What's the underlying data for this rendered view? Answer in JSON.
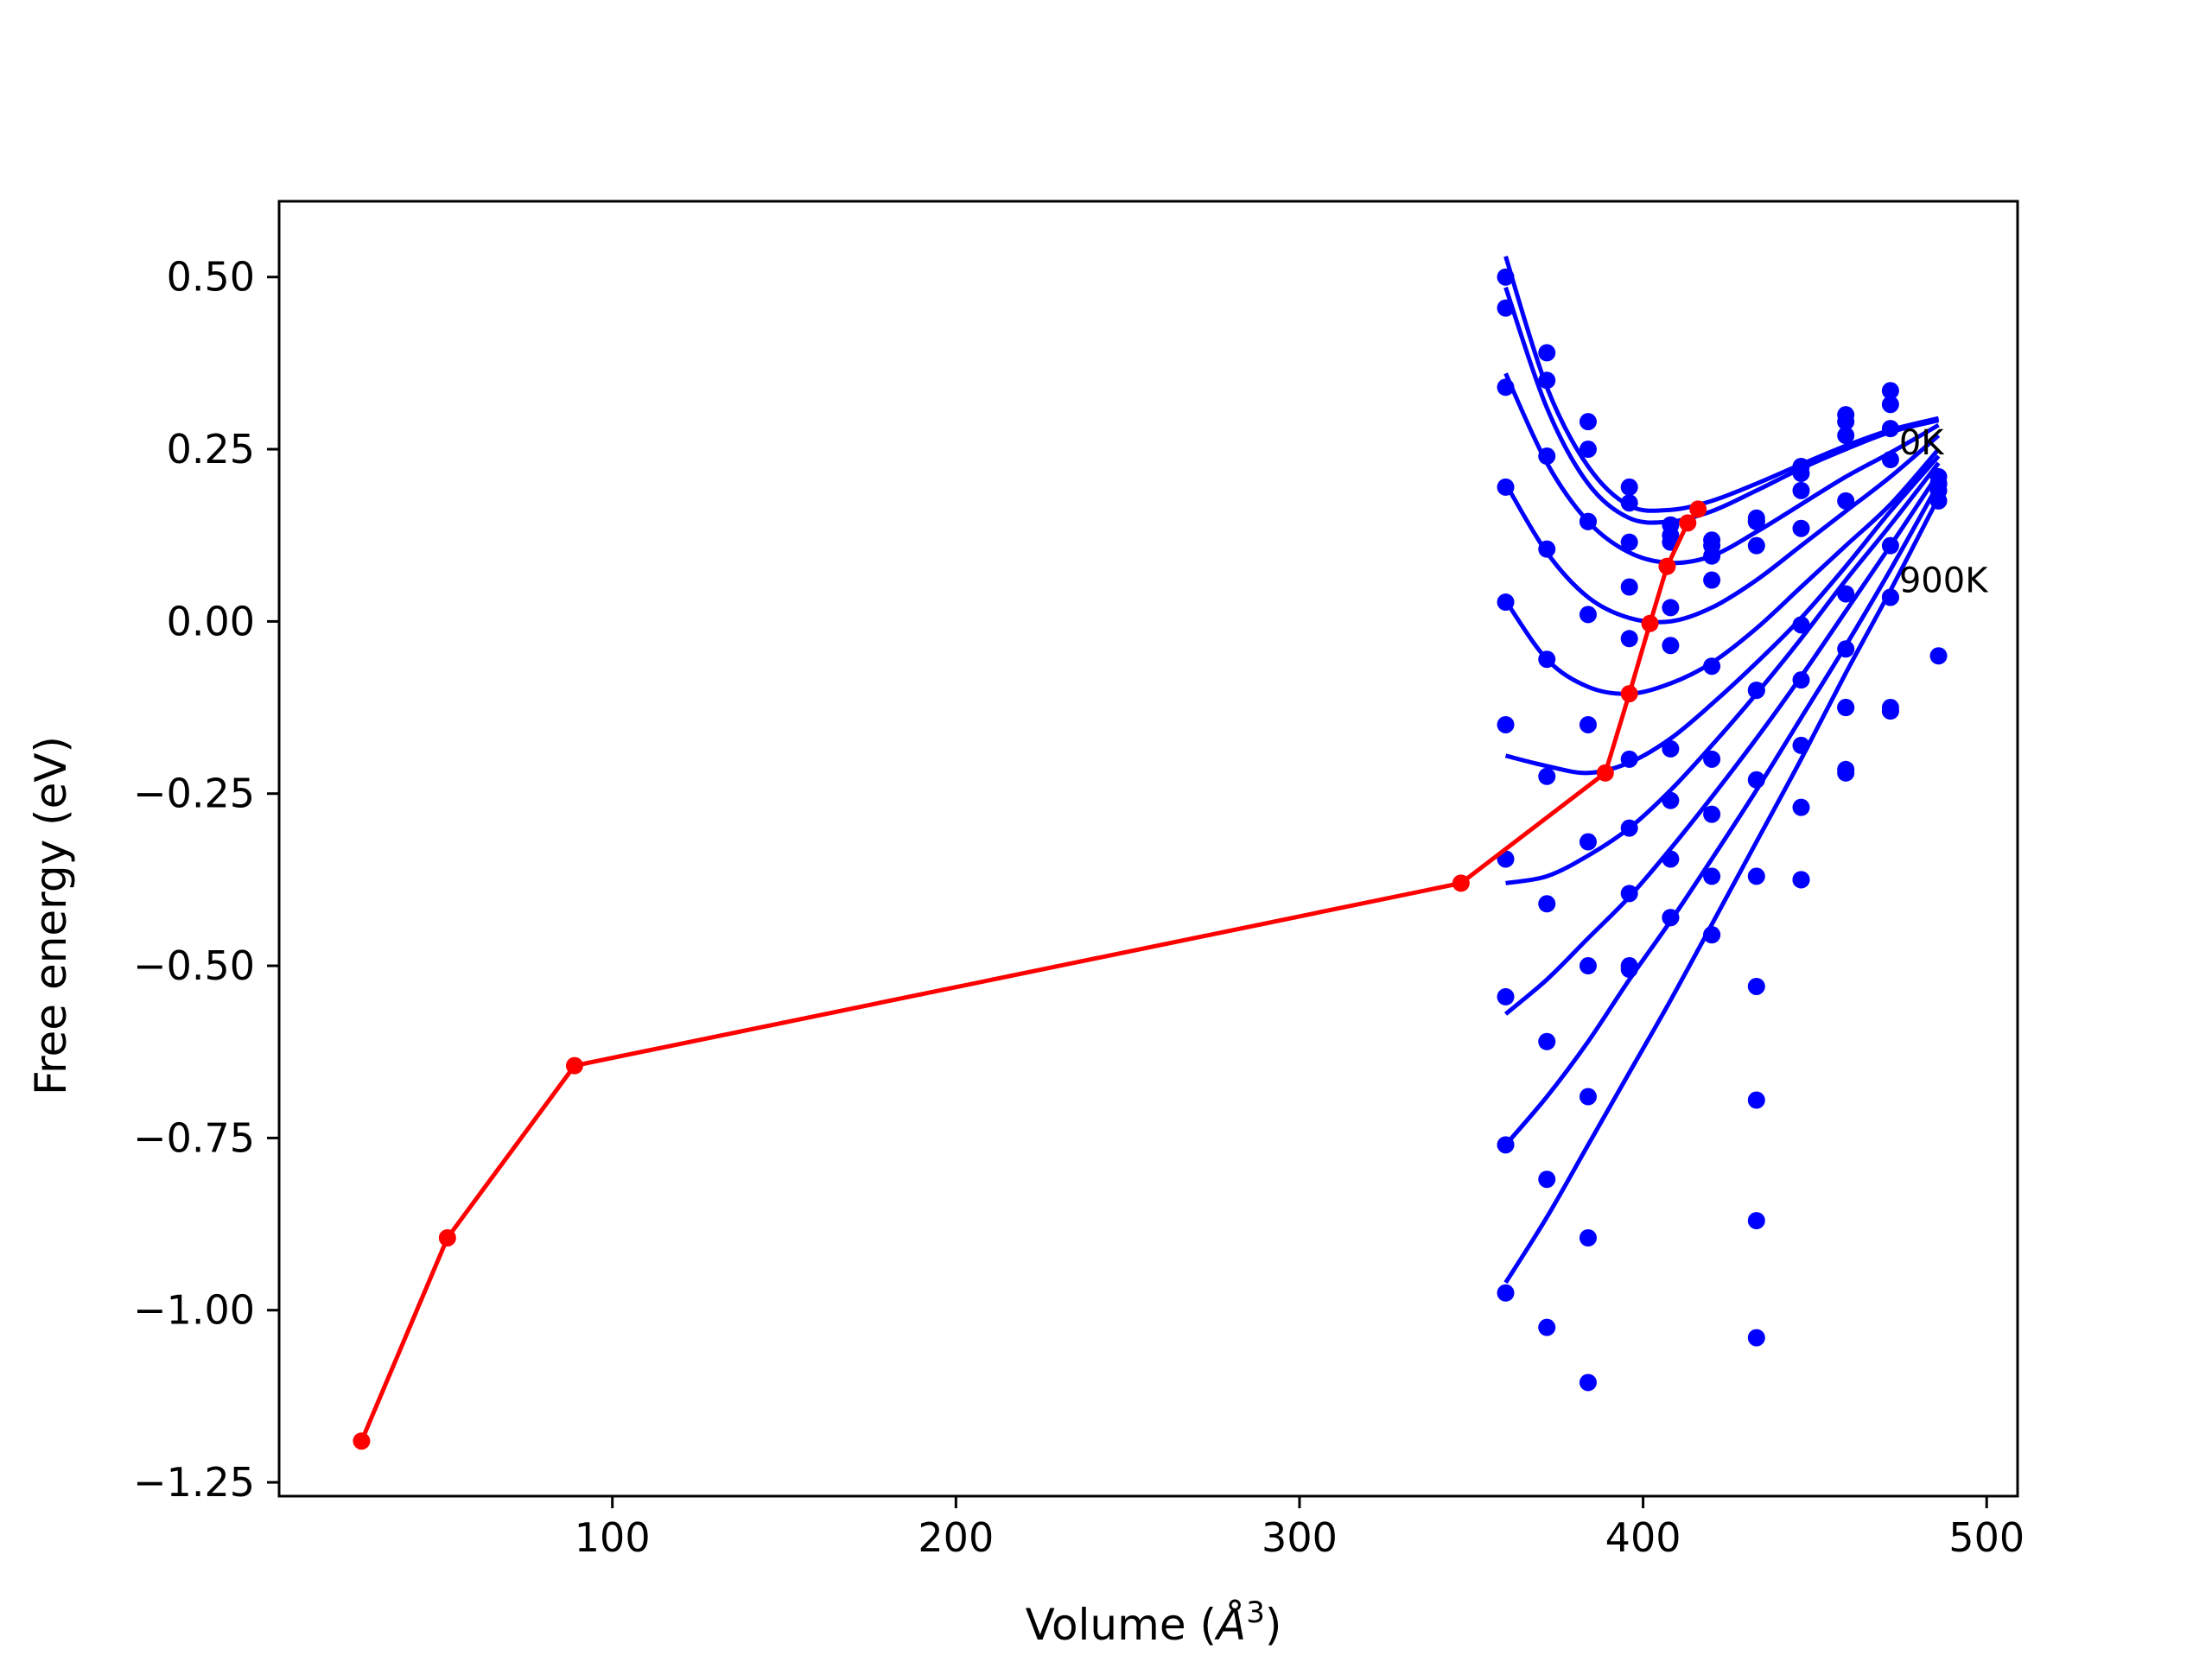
{
  "chart_data": {
    "type": "line",
    "title": "",
    "xlabel": "Volume (",
    "xlabel_unit": "Å",
    "xlabel_sup": "3",
    "xlabel_close": ")",
    "ylabel": "Free energy (eV)",
    "xlim": [
      3,
      509
    ],
    "ylim": [
      -1.27,
      0.61
    ],
    "xticks": [
      100,
      200,
      300,
      400,
      500
    ],
    "xtick_labels": [
      "100",
      "200",
      "300",
      "400",
      "500"
    ],
    "yticks": [
      0.5,
      0.25,
      0.0,
      -0.25,
      -0.5,
      -0.75,
      -1.0,
      -1.25
    ],
    "ytick_labels": [
      "0.50",
      "0.25",
      "0.00",
      "−0.25",
      "−0.50",
      "−0.75",
      "−1.00",
      "−1.25"
    ],
    "grid": false,
    "colors": {
      "curves": "#0000ff",
      "minimum_path": "#ff0000",
      "axes": "#000000"
    },
    "annotations": [
      {
        "text": "0K",
        "x": 473,
        "y": 0.26
      },
      {
        "text": "900K",
        "x": 473,
        "y": 0.06
      }
    ],
    "minimum_path": {
      "x": [
        27,
        52,
        89,
        347,
        389,
        396,
        402,
        407,
        413,
        416
      ],
      "y": [
        -1.19,
        -0.895,
        -0.645,
        -0.38,
        -0.22,
        -0.105,
        -0.003,
        0.08,
        0.143,
        0.163
      ]
    },
    "sample_volumes": [
      360,
      372,
      384,
      396,
      408,
      420,
      433,
      446,
      459,
      472,
      486
    ],
    "isotherms": [
      {
        "fit": [
          0.53,
          0.34,
          0.225,
          0.168,
          0.162,
          0.175,
          0.2,
          0.228,
          0.255,
          0.278,
          0.295
        ],
        "points": [
          0.5,
          0.39,
          0.29,
          0.195,
          0.14,
          0.118,
          0.145,
          0.225,
          0.3,
          0.335,
          0.2
        ]
      },
      {
        "fit": [
          0.485,
          0.31,
          0.2,
          0.15,
          0.145,
          0.16,
          0.19,
          0.222,
          0.25,
          0.275,
          0.292
        ],
        "points": [
          0.455,
          0.35,
          0.25,
          0.172,
          0.125,
          0.11,
          0.15,
          0.215,
          0.29,
          0.315,
          0.19
        ]
      },
      {
        "fit": [
          0.36,
          0.23,
          0.145,
          0.1,
          0.085,
          0.095,
          0.13,
          0.17,
          0.21,
          0.245,
          0.285
        ],
        "points": [
          0.34,
          0.24,
          0.145,
          0.115,
          0.115,
          0.095,
          0.145,
          0.19,
          0.27,
          0.28,
          0.2
        ]
      },
      {
        "fit": [
          0.2,
          0.1,
          0.035,
          0.005,
          0.0,
          0.02,
          0.06,
          0.11,
          0.16,
          0.21,
          0.27
        ],
        "points": [
          0.195,
          0.105,
          0.145,
          0.05,
          0.02,
          0.06,
          0.11,
          0.135,
          0.175,
          0.235,
          0.21
        ]
      },
      {
        "fit": [
          0.03,
          -0.055,
          -0.095,
          -0.105,
          -0.09,
          -0.06,
          -0.01,
          0.05,
          0.11,
          0.17,
          0.25
        ],
        "points": [
          0.028,
          -0.055,
          0.01,
          -0.025,
          -0.035,
          -0.065,
          -0.1,
          -0.005,
          0.04,
          0.11,
          0.175
        ]
      },
      {
        "fit": [
          -0.195,
          -0.21,
          -0.22,
          -0.205,
          -0.17,
          -0.12,
          -0.06,
          0.005,
          0.08,
          0.16,
          0.24
        ],
        "points": [
          -0.15,
          -0.225,
          -0.15,
          -0.2,
          -0.185,
          -0.2,
          -0.1,
          -0.085,
          -0.125,
          0.035,
          -0.05
        ]
      },
      {
        "fit": [
          -0.38,
          -0.37,
          -0.34,
          -0.3,
          -0.245,
          -0.18,
          -0.105,
          -0.025,
          0.06,
          0.14,
          0.23
        ],
        "points": [
          -0.345,
          -0.41,
          -0.32,
          -0.3,
          -0.26,
          -0.28,
          -0.23,
          -0.18,
          -0.04,
          -0.13,
          0.2
        ]
      },
      {
        "fit": [
          -0.57,
          -0.52,
          -0.46,
          -0.4,
          -0.33,
          -0.255,
          -0.17,
          -0.08,
          0.015,
          0.11,
          0.215
        ],
        "points": [
          -0.545,
          -0.61,
          -0.5,
          -0.395,
          -0.345,
          -0.37,
          -0.37,
          -0.27,
          -0.125,
          0.035,
          0.2
        ]
      },
      {
        "fit": [
          -0.76,
          -0.69,
          -0.61,
          -0.52,
          -0.435,
          -0.345,
          -0.245,
          -0.14,
          -0.035,
          0.075,
          0.2
        ],
        "points": [
          -0.76,
          -0.81,
          -0.69,
          -0.5,
          -0.43,
          -0.455,
          -0.53,
          -0.375,
          -0.215,
          -0.125,
          0.2
        ]
      },
      {
        "fit": [
          -0.96,
          -0.865,
          -0.76,
          -0.655,
          -0.55,
          -0.44,
          -0.32,
          -0.2,
          -0.075,
          0.045,
          0.18
        ],
        "points": [
          -0.975,
          -1.025,
          -0.895,
          -0.505,
          -0.43,
          -0.455,
          -0.695,
          -0.375,
          -0.22,
          -0.13,
          0.2
        ]
      }
    ],
    "extra_points": [
      {
        "x": 433,
        "y": -0.87
      },
      {
        "x": 433,
        "y": -1.04
      },
      {
        "x": 384,
        "y": -1.105
      }
    ]
  }
}
